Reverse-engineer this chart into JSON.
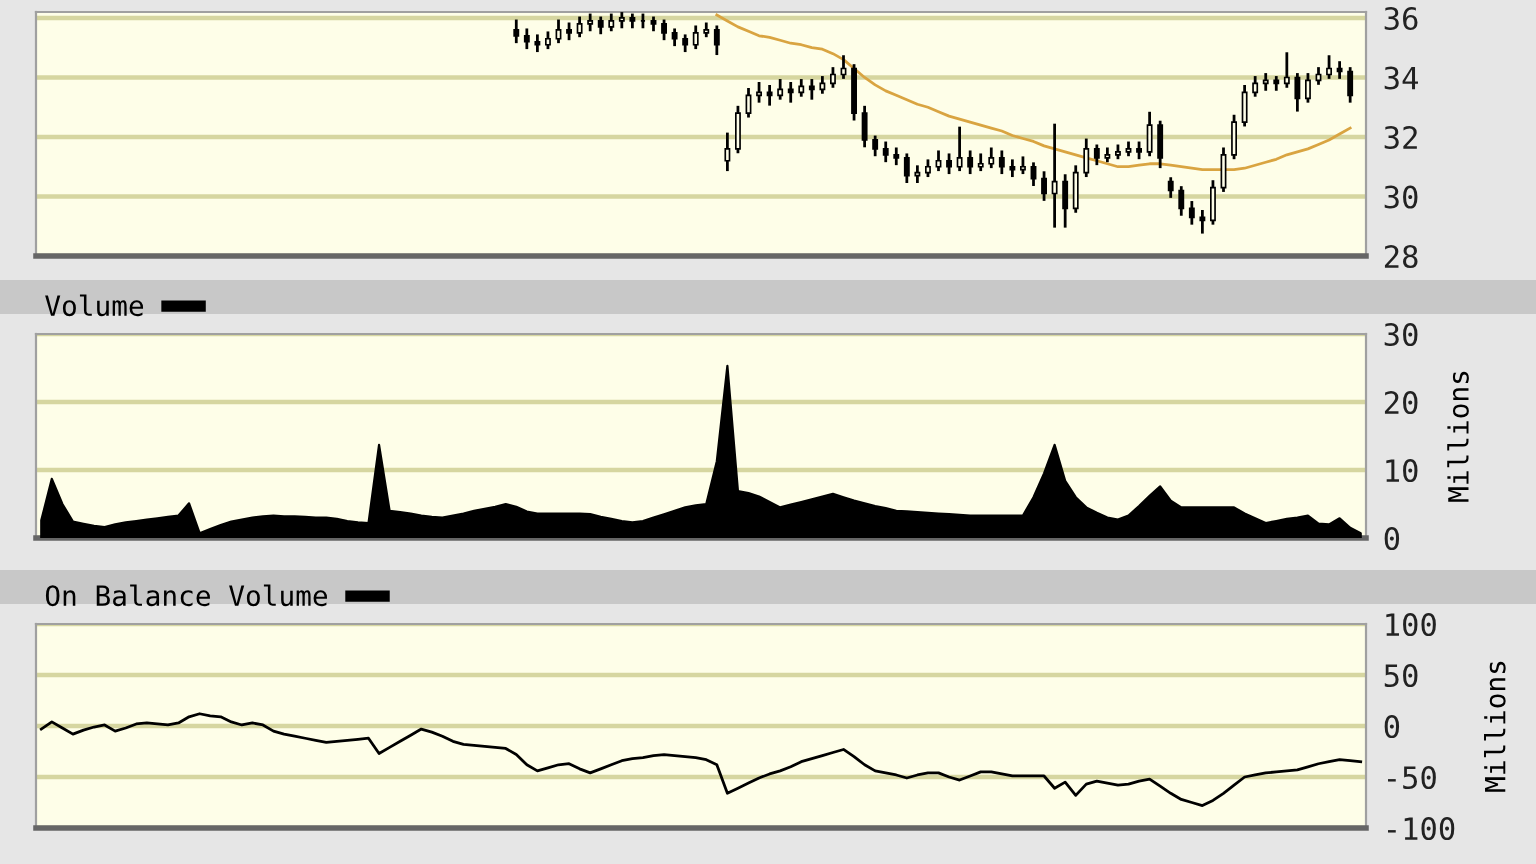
{
  "chart_data": [
    {
      "type": "candlestick",
      "categories": [
        null,
        null,
        null,
        null,
        null,
        null,
        null,
        null,
        null,
        null,
        null,
        null,
        null,
        null,
        null,
        null,
        null,
        null,
        null,
        null,
        null,
        null,
        null,
        null,
        null,
        null,
        null,
        null,
        null,
        null,
        null,
        null,
        null,
        null,
        null,
        null,
        null,
        null,
        null,
        null,
        null,
        null,
        null,
        null,
        null,
        null,
        null,
        null,
        null,
        null,
        null,
        null,
        null,
        null,
        null,
        null,
        null,
        null,
        null,
        null,
        null,
        null,
        null,
        null,
        null,
        null,
        null,
        null,
        null,
        null,
        null,
        null,
        null,
        null,
        null,
        null,
        null,
        null,
        null,
        null,
        null,
        null,
        null,
        null,
        null,
        null,
        null,
        null,
        null,
        null,
        null,
        null,
        null,
        null,
        null,
        null,
        null,
        null,
        null,
        null,
        null,
        null,
        null,
        null,
        null,
        null,
        null,
        null,
        null,
        null,
        null,
        null,
        null,
        null,
        null,
        null,
        null,
        null,
        null,
        null,
        null,
        null,
        null,
        null,
        null,
        null
      ],
      "ylim": [
        28,
        36.2
      ],
      "yticks": [
        28,
        30,
        32,
        34,
        36
      ],
      "grid": "y",
      "tick_labels": "y",
      "color": "#000000",
      "ohlc": [
        null,
        null,
        null,
        null,
        null,
        null,
        null,
        null,
        null,
        null,
        null,
        null,
        null,
        null,
        null,
        null,
        null,
        null,
        null,
        null,
        null,
        null,
        null,
        null,
        null,
        null,
        null,
        null,
        null,
        null,
        null,
        null,
        null,
        null,
        null,
        null,
        null,
        null,
        null,
        null,
        null,
        null,
        null,
        null,
        null,
        [
          35.6,
          35.9,
          35.2,
          35.4
        ],
        [
          35.4,
          35.6,
          35.0,
          35.2
        ],
        [
          35.2,
          35.4,
          34.9,
          35.1
        ],
        [
          35.1,
          35.5,
          35.0,
          35.3
        ],
        [
          35.3,
          35.9,
          35.2,
          35.6
        ],
        [
          35.6,
          35.8,
          35.3,
          35.5
        ],
        [
          35.5,
          36.0,
          35.4,
          35.8
        ],
        [
          35.8,
          36.1,
          35.6,
          35.9
        ],
        [
          35.9,
          36.0,
          35.5,
          35.7
        ],
        [
          35.7,
          36.1,
          35.6,
          35.9
        ],
        [
          35.9,
          36.15,
          35.7,
          36.0
        ],
        [
          36.0,
          36.1,
          35.7,
          35.9
        ],
        [
          35.9,
          36.1,
          35.7,
          35.9
        ],
        [
          35.9,
          36.0,
          35.6,
          35.8
        ],
        [
          35.8,
          35.9,
          35.3,
          35.5
        ],
        [
          35.5,
          35.6,
          35.1,
          35.3
        ],
        [
          35.3,
          35.4,
          34.9,
          35.1
        ],
        [
          35.1,
          35.7,
          35.0,
          35.5
        ],
        [
          35.5,
          35.8,
          35.4,
          35.6
        ],
        [
          35.6,
          35.7,
          34.8,
          35.1
        ],
        [
          31.2,
          32.1,
          30.9,
          31.6
        ],
        [
          31.6,
          33.0,
          31.5,
          32.8
        ],
        [
          32.8,
          33.6,
          32.7,
          33.4
        ],
        [
          33.4,
          33.8,
          33.2,
          33.5
        ],
        [
          33.5,
          33.7,
          33.1,
          33.4
        ],
        [
          33.4,
          33.9,
          33.3,
          33.6
        ],
        [
          33.6,
          33.8,
          33.2,
          33.5
        ],
        [
          33.5,
          33.9,
          33.4,
          33.7
        ],
        [
          33.7,
          33.9,
          33.3,
          33.6
        ],
        [
          33.6,
          34.0,
          33.5,
          33.8
        ],
        [
          33.8,
          34.3,
          33.7,
          34.1
        ],
        [
          34.1,
          34.7,
          34.0,
          34.3
        ],
        [
          34.3,
          34.4,
          32.6,
          32.8
        ],
        [
          32.8,
          33.0,
          31.7,
          31.9
        ],
        [
          31.9,
          32.0,
          31.4,
          31.6
        ],
        [
          31.6,
          31.8,
          31.2,
          31.4
        ],
        [
          31.4,
          31.6,
          31.1,
          31.3
        ],
        [
          31.3,
          31.4,
          30.5,
          30.7
        ],
        [
          30.7,
          31.0,
          30.5,
          30.8
        ],
        [
          30.8,
          31.2,
          30.7,
          31.0
        ],
        [
          31.0,
          31.5,
          30.9,
          31.2
        ],
        [
          31.2,
          31.4,
          30.8,
          31.0
        ],
        [
          31.0,
          32.3,
          30.9,
          31.3
        ],
        [
          31.3,
          31.5,
          30.8,
          31.0
        ],
        [
          31.0,
          31.4,
          30.9,
          31.1
        ],
        [
          31.1,
          31.6,
          31.0,
          31.3
        ],
        [
          31.3,
          31.5,
          30.8,
          31.0
        ],
        [
          31.0,
          31.2,
          30.7,
          30.9
        ],
        [
          30.9,
          31.3,
          30.8,
          31.0
        ],
        [
          31.0,
          31.1,
          30.4,
          30.6
        ],
        [
          30.6,
          30.8,
          29.9,
          30.1
        ],
        [
          30.1,
          32.4,
          29.0,
          30.5
        ],
        [
          30.5,
          30.7,
          29.0,
          29.6
        ],
        [
          29.6,
          31.0,
          29.5,
          30.8
        ],
        [
          30.8,
          31.9,
          30.7,
          31.6
        ],
        [
          31.6,
          31.7,
          31.1,
          31.3
        ],
        [
          31.3,
          31.6,
          31.2,
          31.4
        ],
        [
          31.4,
          31.7,
          31.3,
          31.5
        ],
        [
          31.5,
          31.8,
          31.4,
          31.6
        ],
        [
          31.6,
          31.8,
          31.3,
          31.5
        ],
        [
          31.5,
          32.8,
          31.4,
          32.4
        ],
        [
          32.4,
          32.5,
          31.0,
          31.3
        ],
        [
          30.5,
          30.6,
          30.0,
          30.2
        ],
        [
          30.2,
          30.3,
          29.4,
          29.6
        ],
        [
          29.6,
          29.8,
          29.1,
          29.3
        ],
        [
          29.3,
          29.5,
          28.8,
          29.2
        ],
        [
          29.2,
          30.5,
          29.1,
          30.3
        ],
        [
          30.3,
          31.6,
          30.2,
          31.4
        ],
        [
          31.4,
          32.7,
          31.3,
          32.5
        ],
        [
          32.5,
          33.7,
          32.4,
          33.5
        ],
        [
          33.5,
          34.0,
          33.4,
          33.8
        ],
        [
          33.8,
          34.1,
          33.6,
          33.9
        ],
        [
          33.9,
          34.0,
          33.6,
          33.8
        ],
        [
          33.8,
          34.8,
          33.7,
          34.0
        ],
        [
          34.0,
          34.1,
          32.9,
          33.3
        ],
        [
          33.3,
          34.1,
          33.2,
          33.9
        ],
        [
          33.9,
          34.3,
          33.8,
          34.1
        ],
        [
          34.1,
          34.7,
          34.0,
          34.3
        ],
        [
          34.3,
          34.5,
          34.0,
          34.2
        ],
        [
          34.2,
          34.3,
          33.2,
          33.4
        ],
        null
      ],
      "series": [
        {
          "type": "line",
          "color": "#d9a441",
          "values": [
            null,
            null,
            null,
            null,
            null,
            null,
            null,
            null,
            null,
            null,
            null,
            null,
            null,
            null,
            null,
            null,
            null,
            null,
            null,
            null,
            null,
            null,
            null,
            null,
            null,
            null,
            null,
            null,
            null,
            null,
            null,
            null,
            null,
            null,
            null,
            null,
            null,
            null,
            null,
            null,
            null,
            null,
            null,
            null,
            null,
            null,
            null,
            null,
            null,
            null,
            null,
            null,
            null,
            null,
            null,
            null,
            null,
            null,
            null,
            null,
            null,
            null,
            null,
            null,
            36.1,
            35.9,
            35.7,
            35.55,
            35.4,
            35.35,
            35.25,
            35.15,
            35.1,
            35.0,
            34.95,
            34.8,
            34.6,
            34.3,
            34.0,
            33.75,
            33.55,
            33.4,
            33.25,
            33.1,
            33.0,
            32.85,
            32.7,
            32.6,
            32.5,
            32.4,
            32.3,
            32.2,
            32.05,
            31.95,
            31.85,
            31.7,
            31.6,
            31.5,
            31.4,
            31.3,
            31.2,
            31.1,
            31.0,
            31.0,
            31.05,
            31.1,
            31.1,
            31.05,
            31.0,
            30.95,
            30.9,
            30.9,
            30.9,
            30.9,
            30.95,
            31.05,
            31.15,
            31.25,
            31.4,
            31.5,
            31.6,
            31.75,
            31.9,
            32.1,
            32.3,
            null
          ]
        }
      ]
    },
    {
      "type": "area",
      "categories": [
        null,
        null,
        null,
        null,
        null,
        null,
        null,
        null,
        null,
        null,
        null,
        null,
        null,
        null,
        null,
        null,
        null,
        null,
        null,
        null,
        null,
        null,
        null,
        null,
        null,
        null,
        null,
        null,
        null,
        null,
        null,
        null,
        null,
        null,
        null,
        null,
        null,
        null,
        null,
        null,
        null,
        null,
        null,
        null,
        null,
        null,
        null,
        null,
        null,
        null,
        null,
        null,
        null,
        null,
        null,
        null,
        null,
        null,
        null,
        null,
        null,
        null,
        null,
        null,
        null,
        null,
        null,
        null,
        null,
        null,
        null,
        null,
        null,
        null,
        null,
        null,
        null,
        null,
        null,
        null,
        null,
        null,
        null,
        null,
        null,
        null,
        null,
        null,
        null,
        null,
        null,
        null,
        null,
        null,
        null,
        null,
        null,
        null,
        null,
        null,
        null,
        null,
        null,
        null,
        null,
        null,
        null,
        null,
        null,
        null,
        null,
        null,
        null,
        null,
        null,
        null,
        null,
        null,
        null,
        null,
        null,
        null,
        null,
        null,
        null,
        null
      ],
      "ylim": [
        0,
        30
      ],
      "yticks": [
        0,
        10,
        20,
        30
      ],
      "ylabel": "Millions",
      "grid": "y",
      "tick_labels": "y",
      "legend": "top left",
      "series": [
        {
          "name": "Volume",
          "color": "#000000",
          "values": [
            2.6,
            8.7,
            5.0,
            2.4,
            2.1,
            1.8,
            1.6,
            2.0,
            2.3,
            2.5,
            2.7,
            2.9,
            3.1,
            3.3,
            5.1,
            0.7,
            1.3,
            1.9,
            2.4,
            2.7,
            3.0,
            3.2,
            3.3,
            3.2,
            3.2,
            3.1,
            3.0,
            3.0,
            2.8,
            2.5,
            2.3,
            2.2,
            13.7,
            4.0,
            3.8,
            3.6,
            3.3,
            3.1,
            3.0,
            3.3,
            3.6,
            4.0,
            4.3,
            4.6,
            5.0,
            4.6,
            3.9,
            3.6,
            3.6,
            3.6,
            3.6,
            3.6,
            3.5,
            3.1,
            2.8,
            2.5,
            2.3,
            2.5,
            3.0,
            3.5,
            4.0,
            4.5,
            4.8,
            5.0,
            11.3,
            25.3,
            6.9,
            6.6,
            6.1,
            5.3,
            4.5,
            4.9,
            5.3,
            5.7,
            6.1,
            6.5,
            6.0,
            5.5,
            5.1,
            4.7,
            4.4,
            4.0,
            3.9,
            3.8,
            3.7,
            3.6,
            3.5,
            3.4,
            3.3,
            3.3,
            3.3,
            3.3,
            3.3,
            3.3,
            6.0,
            9.5,
            13.7,
            8.4,
            6.0,
            4.5,
            3.7,
            3.0,
            2.7,
            3.3,
            4.7,
            6.2,
            7.6,
            5.5,
            4.5,
            4.5,
            4.5,
            4.5,
            4.5,
            4.5,
            3.6,
            2.9,
            2.2,
            2.5,
            2.8,
            3.0,
            3.3,
            2.1,
            2.0,
            2.9,
            1.5,
            0.7
          ]
        }
      ]
    },
    {
      "type": "line",
      "categories": [
        null,
        null,
        null,
        null,
        null,
        null,
        null,
        null,
        null,
        null,
        null,
        null,
        null,
        null,
        null,
        null,
        null,
        null,
        null,
        null,
        null,
        null,
        null,
        null,
        null,
        null,
        null,
        null,
        null,
        null,
        null,
        null,
        null,
        null,
        null,
        null,
        null,
        null,
        null,
        null,
        null,
        null,
        null,
        null,
        null,
        null,
        null,
        null,
        null,
        null,
        null,
        null,
        null,
        null,
        null,
        null,
        null,
        null,
        null,
        null,
        null,
        null,
        null,
        null,
        null,
        null,
        null,
        null,
        null,
        null,
        null,
        null,
        null,
        null,
        null,
        null,
        null,
        null,
        null,
        null,
        null,
        null,
        null,
        null,
        null,
        null,
        null,
        null,
        null,
        null,
        null,
        null,
        null,
        null,
        null,
        null,
        null,
        null,
        null,
        null,
        null,
        null,
        null,
        null,
        null,
        null,
        null,
        null,
        null,
        null,
        null,
        null,
        null,
        null,
        null,
        null,
        null,
        null,
        null,
        null,
        null,
        null,
        null,
        null,
        null,
        null
      ],
      "ylim": [
        -100,
        100
      ],
      "yticks": [
        -100,
        -50,
        0,
        50,
        100
      ],
      "ylabel": "Millions",
      "grid": "y",
      "tick_labels": "y",
      "legend": "top left",
      "series": [
        {
          "name": "On Balance Volume",
          "color": "#000000",
          "values": [
            -3,
            4,
            -2,
            -8,
            -4,
            -1,
            1,
            -5,
            -2,
            2,
            3,
            2,
            1,
            3,
            9,
            12,
            10,
            9,
            4,
            1,
            3,
            1,
            -5,
            -8,
            -10,
            -12,
            -14,
            -16,
            -15,
            -14,
            -13,
            -12,
            -27,
            -21,
            -15,
            -9,
            -3,
            -6,
            -10,
            -15,
            -18,
            -19,
            -20,
            -21,
            -22,
            -28,
            -38,
            -44,
            -41,
            -38,
            -37,
            -42,
            -46,
            -42,
            -38,
            -34,
            -32,
            -31,
            -29,
            -28,
            -29,
            -30,
            -31,
            -33,
            -38,
            -66,
            -61,
            -56,
            -51,
            -47,
            -44,
            -40,
            -35,
            -32,
            -29,
            -26,
            -23,
            -30,
            -38,
            -44,
            -46,
            -48,
            -51,
            -48,
            -46,
            -46,
            -50,
            -53,
            -49,
            -45,
            -45,
            -47,
            -49,
            -49,
            -49,
            -49,
            -61,
            -55,
            -68,
            -57,
            -54,
            -56,
            -58,
            -57,
            -54,
            -52,
            -59,
            -66,
            -72,
            -75,
            -78,
            -73,
            -66,
            -58,
            -50,
            -48,
            -46,
            -45,
            -44,
            -43,
            -40,
            -37,
            -35,
            -33,
            -34,
            -35
          ]
        }
      ]
    }
  ]
}
